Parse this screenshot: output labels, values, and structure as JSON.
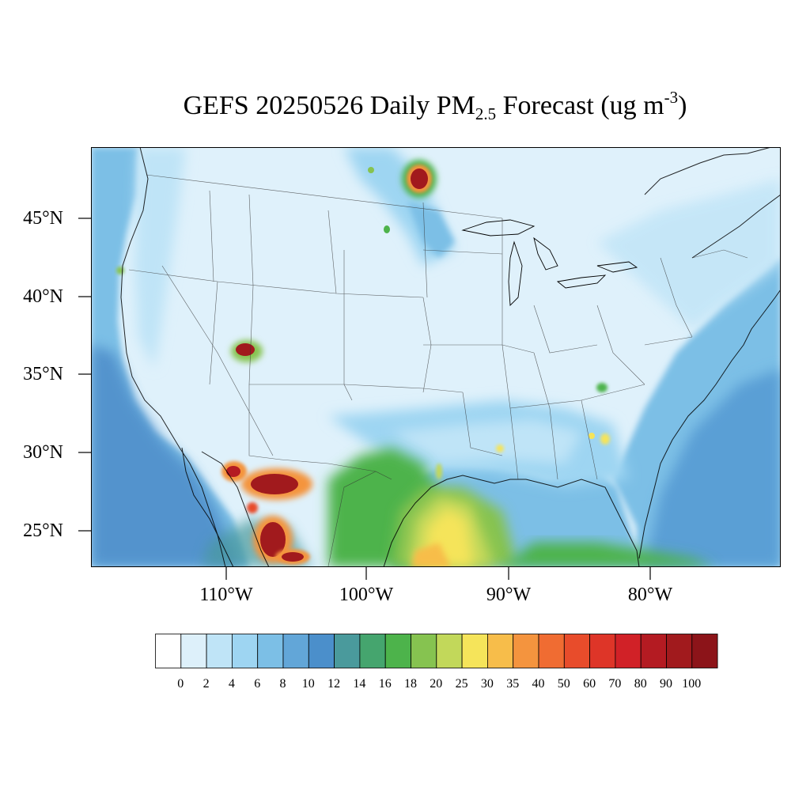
{
  "title": {
    "prefix": "GEFS 20250526 Daily PM",
    "subscript": "2.5",
    "middle": " Forecast (ug m",
    "superscript": "-3",
    "suffix": ")"
  },
  "map": {
    "lat_labels": [
      "45°N",
      "40°N",
      "35°N",
      "30°N",
      "25°N"
    ],
    "lon_labels": [
      "110°W",
      "100°W",
      "90°W",
      "80°W"
    ],
    "background_color": "#dff1fb",
    "ocean_color": "#9ed4f1"
  },
  "colorbar": {
    "labels": [
      "0",
      "2",
      "4",
      "6",
      "8",
      "10",
      "12",
      "14",
      "16",
      "18",
      "20",
      "25",
      "30",
      "35",
      "40",
      "50",
      "60",
      "70",
      "80",
      "90",
      "100"
    ],
    "colors": [
      "#ffffff",
      "#ddf0fa",
      "#bfe4f7",
      "#9ed5f2",
      "#7cbfe6",
      "#62a6d8",
      "#4b8fcb",
      "#4a9a9c",
      "#45a56e",
      "#4db34b",
      "#86c350",
      "#c2d85a",
      "#f5e45a",
      "#f7bd4a",
      "#f4943e",
      "#f06c32",
      "#e84c2b",
      "#de3528",
      "#d12127",
      "#b41b22",
      "#a11a1d",
      "#8c1419"
    ]
  }
}
